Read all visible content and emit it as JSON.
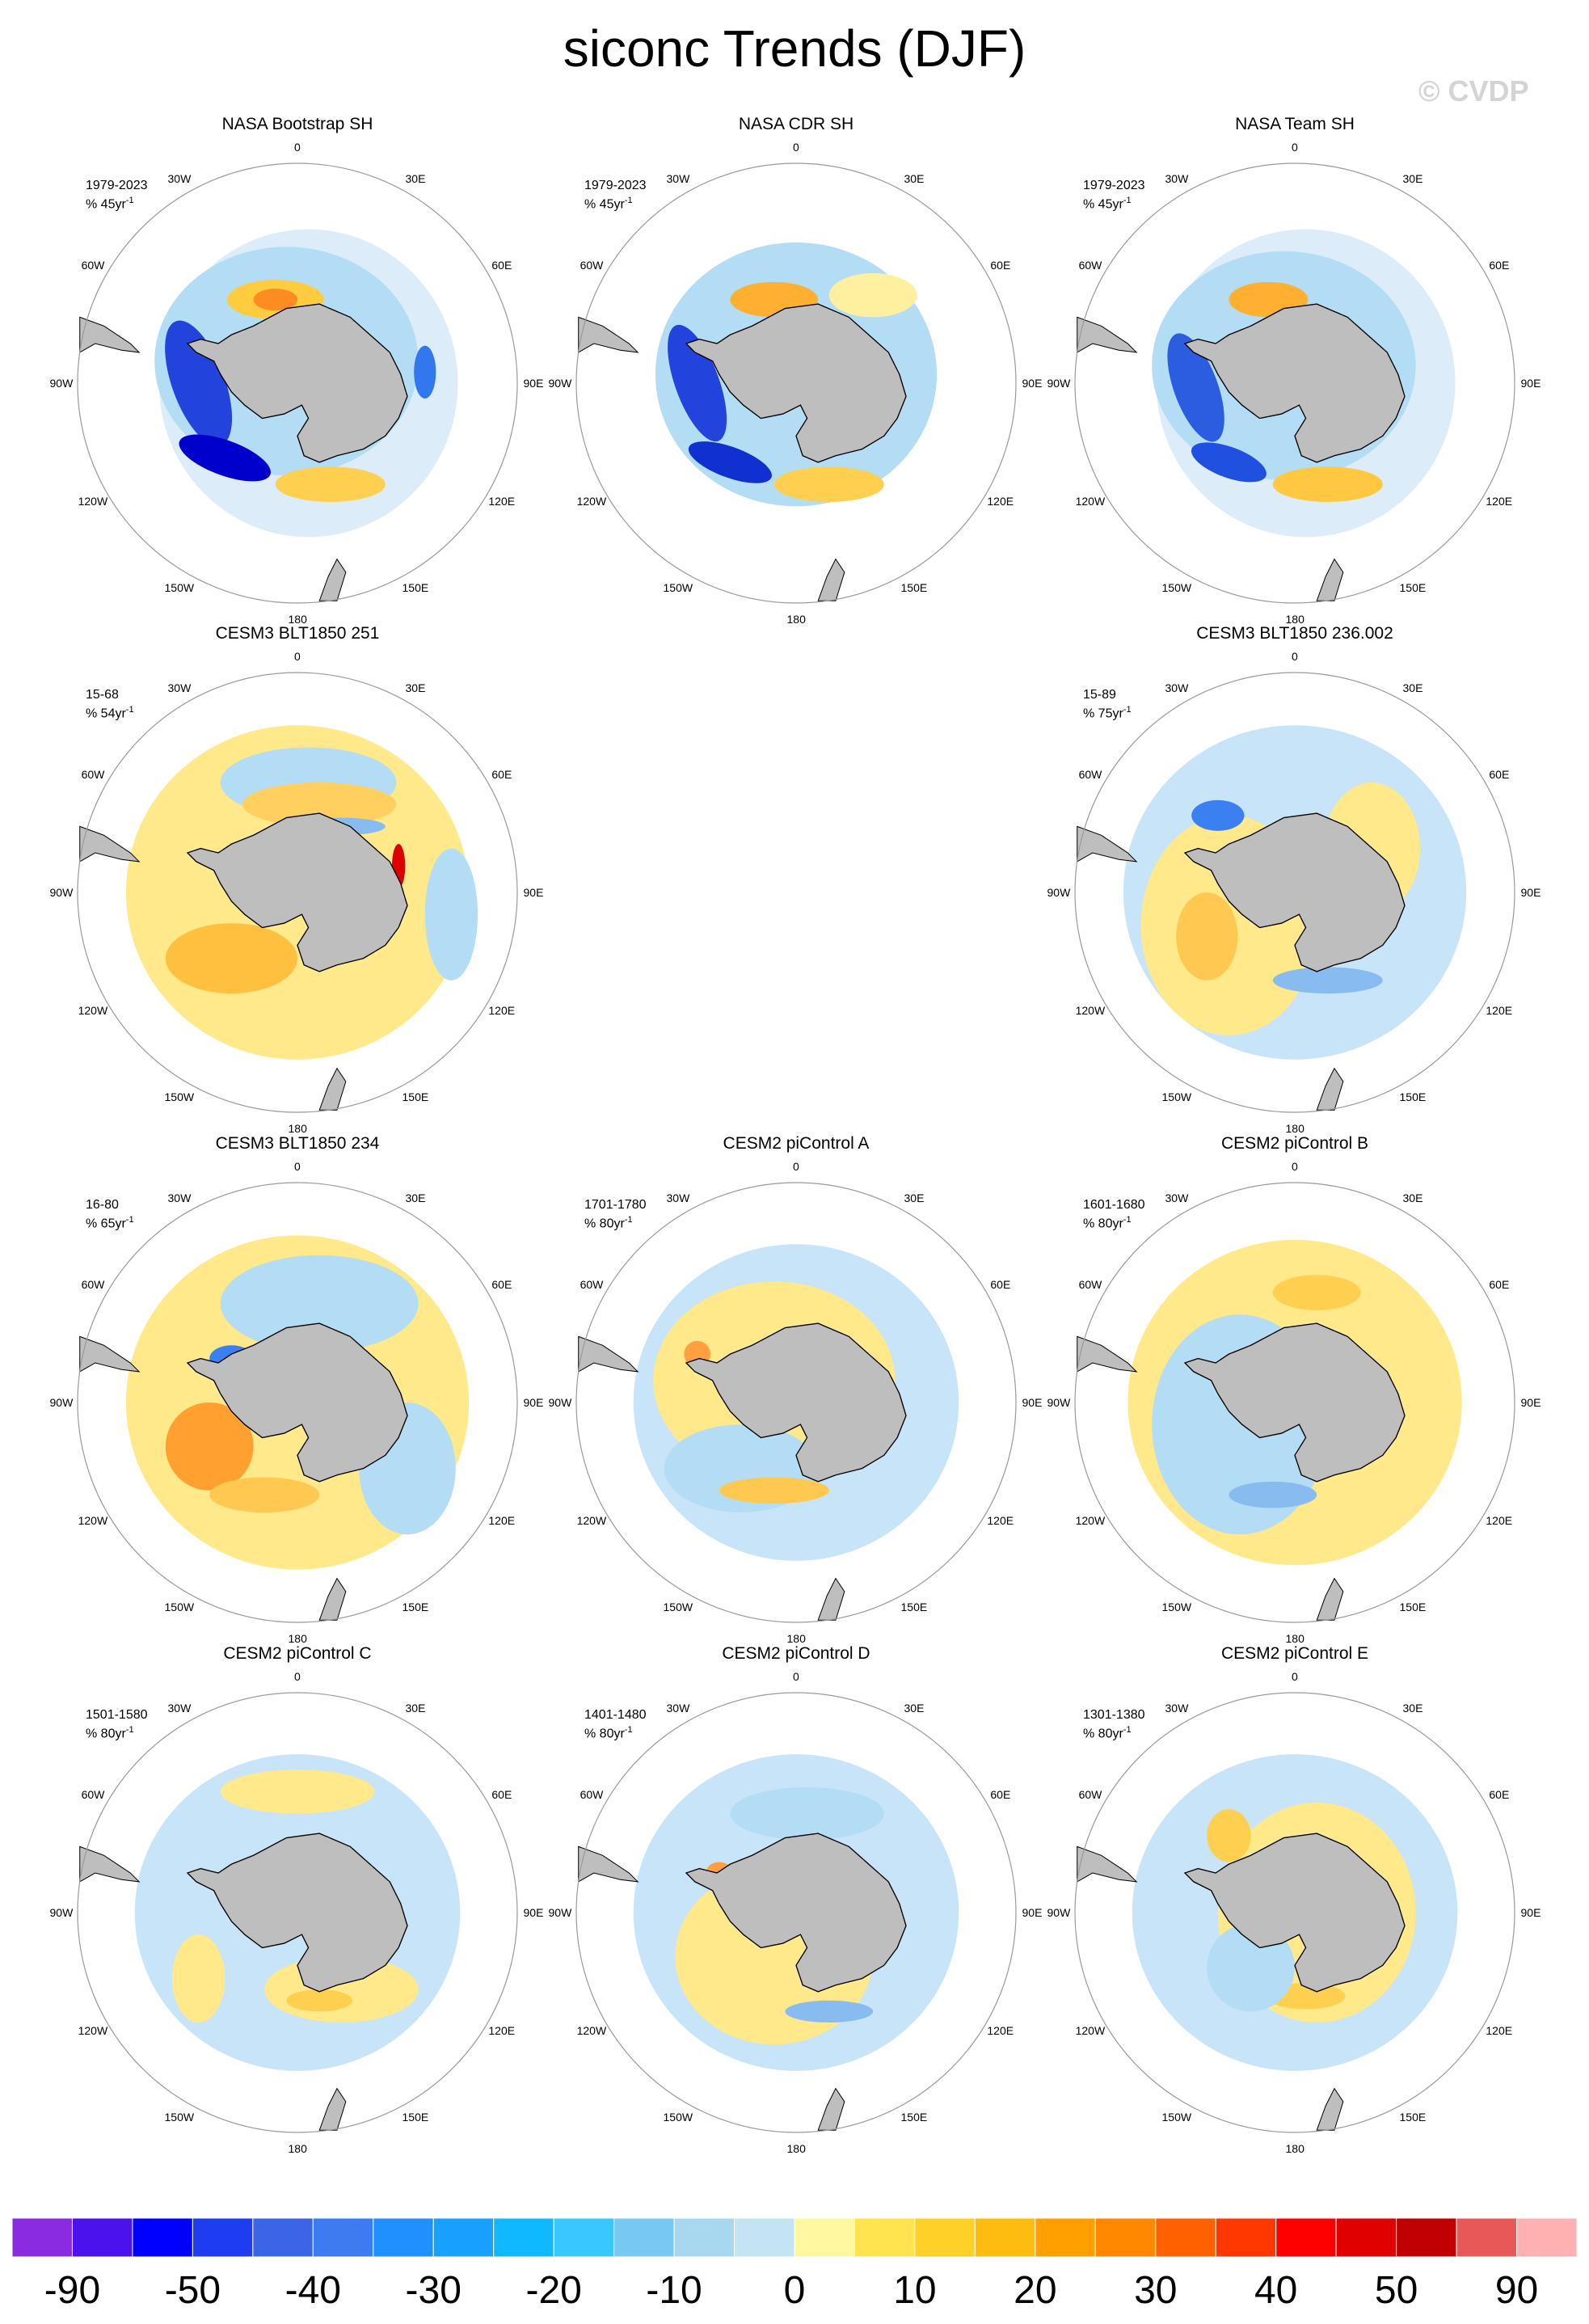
{
  "title": "siconc Trends (DJF)",
  "watermark": "© CVDP",
  "lon_labels": [
    "0",
    "30E",
    "60E",
    "90E",
    "120E",
    "150E",
    "180",
    "150W",
    "120W",
    "90W",
    "60W",
    "30W"
  ],
  "panels": [
    {
      "title": "NASA Bootstrap SH",
      "period": "1979-2023",
      "units": "% 45yr",
      "pattern": "obs1"
    },
    {
      "title": "NASA CDR SH",
      "period": "1979-2023",
      "units": "% 45yr",
      "pattern": "obs2"
    },
    {
      "title": "NASA Team SH",
      "period": "1979-2023",
      "units": "% 45yr",
      "pattern": "obs3"
    },
    {
      "title": "CESM3 BLT1850 251",
      "period": "15-68",
      "units": "% 54yr",
      "pattern": "warm"
    },
    null,
    {
      "title": "CESM3 BLT1850 236.002",
      "period": "15-89",
      "units": "% 75yr",
      "pattern": "cool"
    },
    {
      "title": "CESM3 BLT1850 234",
      "period": "16-80",
      "units": "% 65yr",
      "pattern": "mixedwarm"
    },
    {
      "title": "CESM2 piControl A",
      "period": "1701-1780",
      "units": "% 80yr",
      "pattern": "mixed"
    },
    {
      "title": "CESM2 piControl B",
      "period": "1601-1680",
      "units": "% 80yr",
      "pattern": "mixed2"
    },
    {
      "title": "CESM2 piControl C",
      "period": "1501-1580",
      "units": "% 80yr",
      "pattern": "mixed3"
    },
    {
      "title": "CESM2 piControl D",
      "period": "1401-1480",
      "units": "% 80yr",
      "pattern": "mixed4"
    },
    {
      "title": "CESM2 piControl E",
      "period": "1301-1380",
      "units": "% 80yr",
      "pattern": "mixed5"
    }
  ],
  "colorbar": {
    "colors": [
      "#8a2be2",
      "#4b12ee",
      "#0000ff",
      "#1e3cf0",
      "#3c64e6",
      "#3c7cf0",
      "#2090ff",
      "#18a0ff",
      "#10b8ff",
      "#38c8ff",
      "#78c8f4",
      "#a8d8f0",
      "#c4e4f4",
      "#fff8a0",
      "#ffe450",
      "#ffd028",
      "#ffbc10",
      "#ffa000",
      "#ff8800",
      "#ff6000",
      "#ff3800",
      "#ff0000",
      "#e00000",
      "#c00000",
      "#e85858",
      "#ffb0b0"
    ],
    "labels": [
      "-90",
      "-50",
      "-40",
      "-30",
      "-20",
      "-10",
      "0",
      "10",
      "20",
      "30",
      "40",
      "50",
      "90"
    ]
  },
  "colors": {
    "land": "#bebebe",
    "coast": "#000000",
    "warm": "#ffe16e",
    "cool": "#b3dcf5"
  }
}
